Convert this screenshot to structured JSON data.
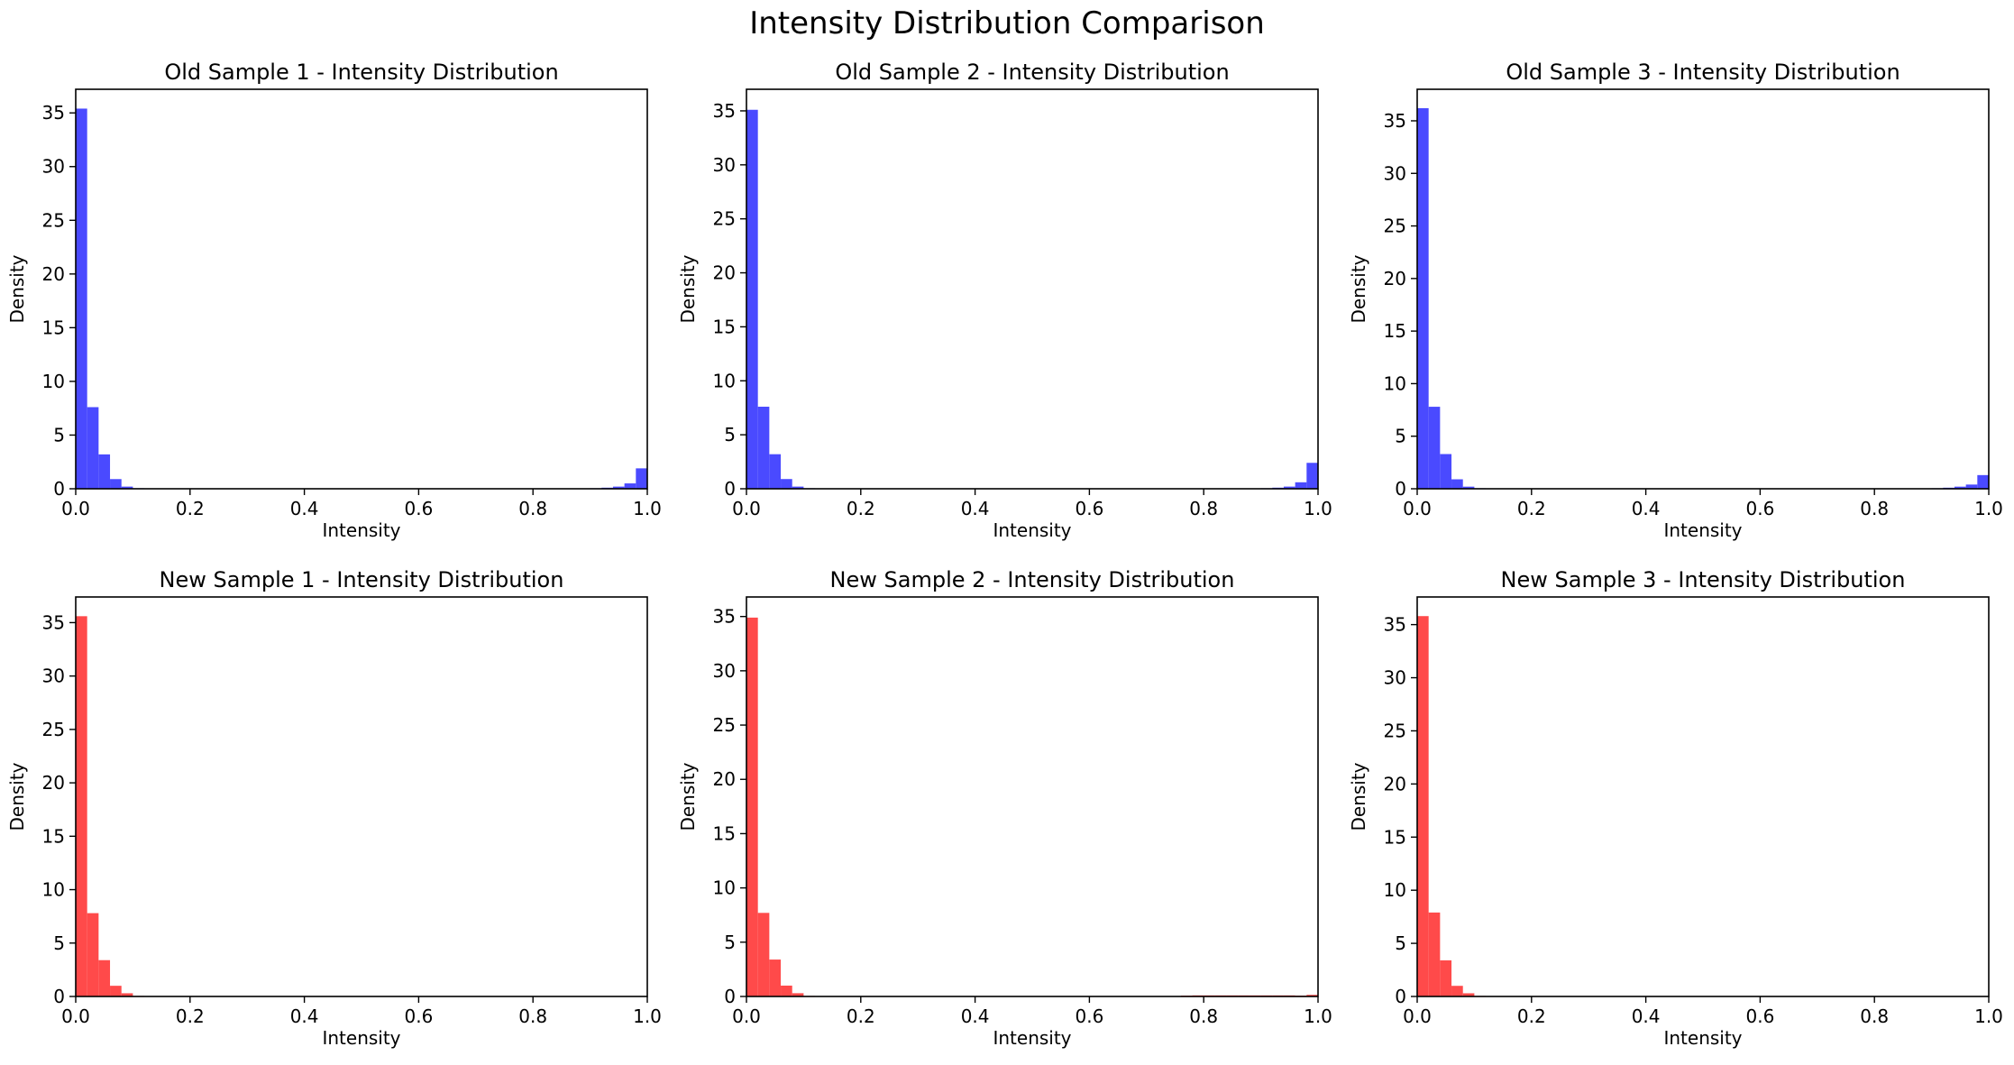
{
  "figure_title": "Intensity Distribution Comparison",
  "chart_data": [
    {
      "type": "bar",
      "title": "Old Sample 1 - Intensity Distribution",
      "xlabel": "Intensity",
      "ylabel": "Density",
      "xlim": [
        0,
        1
      ],
      "ylim": [
        0,
        37.2
      ],
      "xticks": [
        "0.0",
        "0.2",
        "0.4",
        "0.6",
        "0.8",
        "1.0"
      ],
      "yticks": [
        "0",
        "5",
        "10",
        "15",
        "20",
        "25",
        "30",
        "35"
      ],
      "color": "#4a4aff",
      "bin_width": 0.02,
      "values": [
        35.4,
        7.6,
        3.2,
        0.9,
        0.2,
        0.05,
        0.02,
        0.02,
        0.02,
        0.02,
        0.02,
        0.02,
        0.02,
        0.02,
        0.02,
        0.02,
        0.02,
        0.02,
        0.02,
        0.02,
        0.02,
        0.02,
        0.02,
        0.02,
        0.02,
        0.02,
        0.02,
        0.02,
        0.02,
        0.02,
        0.02,
        0.02,
        0.02,
        0.02,
        0.02,
        0.02,
        0.02,
        0.02,
        0.02,
        0.02,
        0.02,
        0.02,
        0.02,
        0.02,
        0.02,
        0.05,
        0.1,
        0.2,
        0.5,
        1.9
      ]
    },
    {
      "type": "bar",
      "title": "Old Sample 2 - Intensity Distribution",
      "xlabel": "Intensity",
      "ylabel": "Density",
      "xlim": [
        0,
        1
      ],
      "ylim": [
        0,
        37.0
      ],
      "xticks": [
        "0.0",
        "0.2",
        "0.4",
        "0.6",
        "0.8",
        "1.0"
      ],
      "yticks": [
        "0",
        "5",
        "10",
        "15",
        "20",
        "25",
        "30",
        "35"
      ],
      "color": "#4a4aff",
      "bin_width": 0.02,
      "values": [
        35.1,
        7.6,
        3.2,
        0.9,
        0.2,
        0.05,
        0.02,
        0.02,
        0.02,
        0.02,
        0.02,
        0.02,
        0.02,
        0.02,
        0.02,
        0.02,
        0.02,
        0.02,
        0.02,
        0.02,
        0.02,
        0.02,
        0.02,
        0.02,
        0.02,
        0.02,
        0.02,
        0.02,
        0.02,
        0.02,
        0.02,
        0.02,
        0.02,
        0.02,
        0.02,
        0.02,
        0.02,
        0.02,
        0.02,
        0.02,
        0.02,
        0.02,
        0.02,
        0.02,
        0.02,
        0.05,
        0.1,
        0.2,
        0.6,
        2.4
      ]
    },
    {
      "type": "bar",
      "title": "Old Sample 3 - Intensity Distribution",
      "xlabel": "Intensity",
      "ylabel": "Density",
      "xlim": [
        0,
        1
      ],
      "ylim": [
        0,
        38.0
      ],
      "xticks": [
        "0.0",
        "0.2",
        "0.4",
        "0.6",
        "0.8",
        "1.0"
      ],
      "yticks": [
        "0",
        "5",
        "10",
        "15",
        "20",
        "25",
        "30",
        "35"
      ],
      "color": "#4a4aff",
      "bin_width": 0.02,
      "values": [
        36.2,
        7.8,
        3.3,
        0.9,
        0.2,
        0.05,
        0.02,
        0.02,
        0.02,
        0.02,
        0.02,
        0.02,
        0.02,
        0.02,
        0.02,
        0.02,
        0.02,
        0.02,
        0.02,
        0.02,
        0.02,
        0.02,
        0.02,
        0.02,
        0.02,
        0.02,
        0.02,
        0.02,
        0.02,
        0.02,
        0.02,
        0.02,
        0.02,
        0.02,
        0.02,
        0.02,
        0.02,
        0.02,
        0.02,
        0.02,
        0.02,
        0.02,
        0.02,
        0.02,
        0.02,
        0.05,
        0.1,
        0.2,
        0.4,
        1.3
      ]
    },
    {
      "type": "bar",
      "title": "New Sample 1 - Intensity Distribution",
      "xlabel": "Intensity",
      "ylabel": "Density",
      "xlim": [
        0,
        1
      ],
      "ylim": [
        0,
        37.4
      ],
      "xticks": [
        "0.0",
        "0.2",
        "0.4",
        "0.6",
        "0.8",
        "1.0"
      ],
      "yticks": [
        "0",
        "5",
        "10",
        "15",
        "20",
        "25",
        "30",
        "35"
      ],
      "color": "#ff4a4a",
      "bin_width": 0.02,
      "values": [
        35.6,
        7.8,
        3.4,
        1.0,
        0.3,
        0.05,
        0.02,
        0.02,
        0.02,
        0.02,
        0.02,
        0.02,
        0.02,
        0.02,
        0.02,
        0.02,
        0.02,
        0.02,
        0.02,
        0.02,
        0.02,
        0.02,
        0.02,
        0.02,
        0.02,
        0.02,
        0.02,
        0.02,
        0.02,
        0.02,
        0.02,
        0.02,
        0.02,
        0.02,
        0.02,
        0.02,
        0.02,
        0.02,
        0.02,
        0.02,
        0.02,
        0.02,
        0.02,
        0.02,
        0.02,
        0.02,
        0.02,
        0.02,
        0.02,
        0.02
      ]
    },
    {
      "type": "bar",
      "title": "New Sample 2 - Intensity Distribution",
      "xlabel": "Intensity",
      "ylabel": "Density",
      "xlim": [
        0,
        1
      ],
      "ylim": [
        0,
        36.8
      ],
      "xticks": [
        "0.0",
        "0.2",
        "0.4",
        "0.6",
        "0.8",
        "1.0"
      ],
      "yticks": [
        "0",
        "5",
        "10",
        "15",
        "20",
        "25",
        "30",
        "35"
      ],
      "color": "#ff4a4a",
      "bin_width": 0.02,
      "values": [
        34.9,
        7.7,
        3.4,
        1.0,
        0.3,
        0.05,
        0.02,
        0.02,
        0.02,
        0.02,
        0.02,
        0.02,
        0.02,
        0.02,
        0.02,
        0.02,
        0.02,
        0.02,
        0.02,
        0.02,
        0.02,
        0.02,
        0.02,
        0.02,
        0.02,
        0.02,
        0.02,
        0.02,
        0.02,
        0.02,
        0.02,
        0.02,
        0.02,
        0.02,
        0.02,
        0.02,
        0.02,
        0.02,
        0.08,
        0.1,
        0.1,
        0.1,
        0.1,
        0.1,
        0.1,
        0.1,
        0.1,
        0.1,
        0.08,
        0.15
      ]
    },
    {
      "type": "bar",
      "title": "New Sample 3 - Intensity Distribution",
      "xlabel": "Intensity",
      "ylabel": "Density",
      "xlim": [
        0,
        1
      ],
      "ylim": [
        0,
        37.6
      ],
      "xticks": [
        "0.0",
        "0.2",
        "0.4",
        "0.6",
        "0.8",
        "1.0"
      ],
      "yticks": [
        "0",
        "5",
        "10",
        "15",
        "20",
        "25",
        "30",
        "35"
      ],
      "color": "#ff4a4a",
      "bin_width": 0.02,
      "values": [
        35.8,
        7.9,
        3.4,
        1.0,
        0.3,
        0.05,
        0.02,
        0.02,
        0.02,
        0.02,
        0.02,
        0.02,
        0.02,
        0.02,
        0.02,
        0.02,
        0.02,
        0.02,
        0.02,
        0.02,
        0.02,
        0.02,
        0.02,
        0.02,
        0.02,
        0.02,
        0.02,
        0.02,
        0.02,
        0.02,
        0.02,
        0.02,
        0.02,
        0.02,
        0.02,
        0.02,
        0.02,
        0.02,
        0.02,
        0.02,
        0.02,
        0.02,
        0.02,
        0.02,
        0.02,
        0.02,
        0.02,
        0.02,
        0.02,
        0.02
      ]
    }
  ]
}
